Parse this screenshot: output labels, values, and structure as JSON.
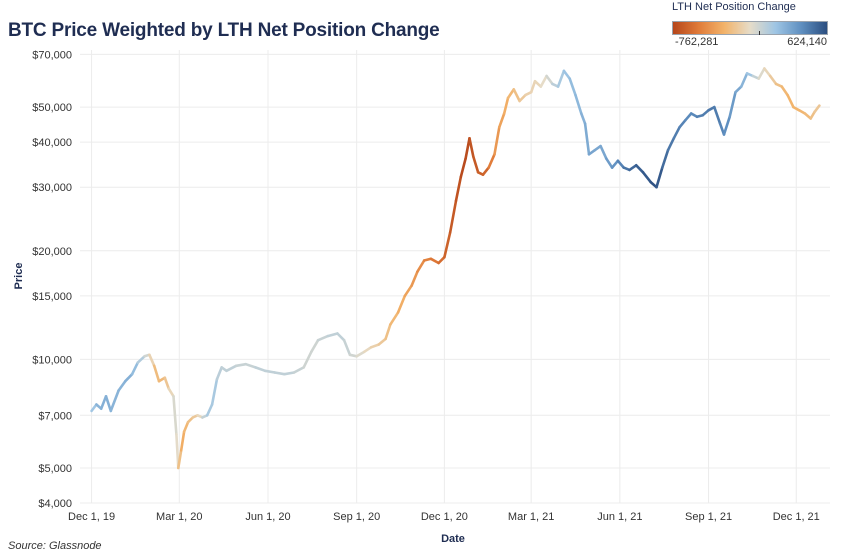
{
  "title": "BTC Price Weighted by LTH Net Position Change",
  "source": "Source: Glassnode",
  "legend": {
    "title": "LTH Net Position Change",
    "min_label": "-762,281",
    "max_label": "624,140",
    "min_value": -762281,
    "max_value": 624140
  },
  "colors": {
    "negative_strong": "#b5461b",
    "negative_mid": "#e07b39",
    "negative_light": "#f2b36a",
    "neutral": "#e6dcc8",
    "positive_light": "#9ec5e4",
    "positive_mid": "#5f8fc0",
    "positive_strong": "#2b4e80",
    "grid": "#ececec"
  },
  "chart_data": {
    "type": "line",
    "title": "BTC Price Weighted by LTH Net Position Change",
    "xlabel": "Date",
    "ylabel": "Price",
    "yscale": "log",
    "ylim": [
      4000,
      72000
    ],
    "xlim_days": [
      -12,
      766
    ],
    "x_unit": "days since Dec 1, 2019",
    "yticks": [
      {
        "value": 4000,
        "label": "$4,000"
      },
      {
        "value": 5000,
        "label": "$5,000"
      },
      {
        "value": 7000,
        "label": "$7,000"
      },
      {
        "value": 10000,
        "label": "$10,000"
      },
      {
        "value": 15000,
        "label": "$15,000"
      },
      {
        "value": 20000,
        "label": "$20,000"
      },
      {
        "value": 30000,
        "label": "$30,000"
      },
      {
        "value": 40000,
        "label": "$40,000"
      },
      {
        "value": 50000,
        "label": "$50,000"
      },
      {
        "value": 70000,
        "label": "$70,000"
      }
    ],
    "xticks": [
      {
        "value": 0,
        "label": "Dec 1, 19"
      },
      {
        "value": 91,
        "label": "Mar 1, 20"
      },
      {
        "value": 183,
        "label": "Jun 1, 20"
      },
      {
        "value": 275,
        "label": "Sep 1, 20"
      },
      {
        "value": 366,
        "label": "Dec 1, 20"
      },
      {
        "value": 456,
        "label": "Mar 1, 21"
      },
      {
        "value": 548,
        "label": "Jun 1, 21"
      },
      {
        "value": 640,
        "label": "Sep 1, 21"
      },
      {
        "value": 731,
        "label": "Dec 1, 21"
      }
    ],
    "series": [
      {
        "name": "BTC Price",
        "points": [
          [
            0,
            7200,
            150000
          ],
          [
            5,
            7500,
            250000
          ],
          [
            10,
            7300,
            300000
          ],
          [
            15,
            7900,
            280000
          ],
          [
            20,
            7200,
            300000
          ],
          [
            28,
            8200,
            250000
          ],
          [
            35,
            8700,
            300000
          ],
          [
            42,
            9100,
            280000
          ],
          [
            48,
            9800,
            200000
          ],
          [
            55,
            10200,
            100000
          ],
          [
            60,
            10300,
            30000
          ],
          [
            65,
            9600,
            -150000
          ],
          [
            70,
            8700,
            -250000
          ],
          [
            76,
            8900,
            -180000
          ],
          [
            80,
            8300,
            -100000
          ],
          [
            85,
            7900,
            20000
          ],
          [
            88,
            6200,
            60000
          ],
          [
            90,
            5000,
            -50000
          ],
          [
            93,
            5600,
            -300000
          ],
          [
            96,
            6300,
            -250000
          ],
          [
            100,
            6700,
            -200000
          ],
          [
            105,
            6900,
            -150000
          ],
          [
            110,
            7000,
            -100000
          ],
          [
            115,
            6900,
            50000
          ],
          [
            120,
            7000,
            150000
          ],
          [
            125,
            7500,
            200000
          ],
          [
            130,
            8800,
            150000
          ],
          [
            135,
            9500,
            100000
          ],
          [
            140,
            9300,
            120000
          ],
          [
            150,
            9600,
            100000
          ],
          [
            160,
            9700,
            80000
          ],
          [
            170,
            9500,
            100000
          ],
          [
            180,
            9300,
            120000
          ],
          [
            190,
            9200,
            100000
          ],
          [
            200,
            9100,
            120000
          ],
          [
            210,
            9200,
            100000
          ],
          [
            220,
            9500,
            80000
          ],
          [
            228,
            10500,
            60000
          ],
          [
            235,
            11300,
            80000
          ],
          [
            245,
            11600,
            100000
          ],
          [
            255,
            11800,
            120000
          ],
          [
            262,
            11300,
            100000
          ],
          [
            268,
            10300,
            80000
          ],
          [
            275,
            10200,
            50000
          ],
          [
            283,
            10500,
            0
          ],
          [
            290,
            10800,
            -50000
          ],
          [
            298,
            11000,
            -100000
          ],
          [
            305,
            11400,
            -150000
          ],
          [
            310,
            12500,
            -200000
          ],
          [
            318,
            13500,
            -250000
          ],
          [
            325,
            15000,
            -300000
          ],
          [
            332,
            16000,
            -350000
          ],
          [
            338,
            17500,
            -400000
          ],
          [
            345,
            18800,
            -450000
          ],
          [
            352,
            19000,
            -500000
          ],
          [
            360,
            18500,
            -550000
          ],
          [
            366,
            19200,
            -600000
          ],
          [
            372,
            22500,
            -650000
          ],
          [
            378,
            27500,
            -680000
          ],
          [
            383,
            32000,
            -720000
          ],
          [
            388,
            36000,
            -760000
          ],
          [
            392,
            41000,
            -700000
          ],
          [
            396,
            36500,
            -680000
          ],
          [
            401,
            33000,
            -650000
          ],
          [
            406,
            32500,
            -620000
          ],
          [
            412,
            34000,
            -600000
          ],
          [
            418,
            37000,
            -400000
          ],
          [
            423,
            44000,
            -350000
          ],
          [
            428,
            48000,
            -300000
          ],
          [
            432,
            53000,
            -250000
          ],
          [
            438,
            56000,
            -200000
          ],
          [
            444,
            52000,
            -150000
          ],
          [
            450,
            54000,
            -100000
          ],
          [
            456,
            55000,
            -50000
          ],
          [
            460,
            59000,
            -60000
          ],
          [
            466,
            57000,
            -20000
          ],
          [
            472,
            61000,
            20000
          ],
          [
            478,
            58000,
            100000
          ],
          [
            484,
            57000,
            150000
          ],
          [
            490,
            63000,
            200000
          ],
          [
            496,
            60000,
            230000
          ],
          [
            502,
            54000,
            250000
          ],
          [
            508,
            48000,
            270000
          ],
          [
            512,
            45000,
            300000
          ],
          [
            516,
            37000,
            320000
          ],
          [
            522,
            38000,
            350000
          ],
          [
            528,
            39000,
            300000
          ],
          [
            534,
            36000,
            350000
          ],
          [
            540,
            34000,
            380000
          ],
          [
            546,
            35500,
            420000
          ],
          [
            552,
            34000,
            480000
          ],
          [
            558,
            33500,
            520000
          ],
          [
            565,
            34500,
            560000
          ],
          [
            572,
            33000,
            580000
          ],
          [
            580,
            31000,
            600000
          ],
          [
            586,
            30000,
            620000
          ],
          [
            592,
            34000,
            550000
          ],
          [
            598,
            38000,
            500000
          ],
          [
            604,
            41000,
            480000
          ],
          [
            610,
            44000,
            460000
          ],
          [
            616,
            46000,
            440000
          ],
          [
            622,
            48000,
            420000
          ],
          [
            628,
            47000,
            450000
          ],
          [
            634,
            47500,
            470000
          ],
          [
            640,
            49000,
            480000
          ],
          [
            646,
            50000,
            490000
          ],
          [
            652,
            45000,
            460000
          ],
          [
            656,
            42000,
            430000
          ],
          [
            662,
            47000,
            400000
          ],
          [
            668,
            55000,
            350000
          ],
          [
            674,
            57000,
            300000
          ],
          [
            680,
            62000,
            250000
          ],
          [
            686,
            61000,
            150000
          ],
          [
            692,
            60000,
            50000
          ],
          [
            698,
            64000,
            0
          ],
          [
            704,
            61000,
            -80000
          ],
          [
            710,
            58000,
            -150000
          ],
          [
            716,
            57000,
            -200000
          ],
          [
            722,
            54000,
            -250000
          ],
          [
            728,
            50000,
            -250000
          ],
          [
            734,
            49000,
            -250000
          ],
          [
            740,
            48000,
            -220000
          ],
          [
            746,
            46500,
            -200000
          ],
          [
            750,
            48500,
            -150000
          ],
          [
            755,
            50500,
            -120000
          ]
        ]
      }
    ]
  }
}
